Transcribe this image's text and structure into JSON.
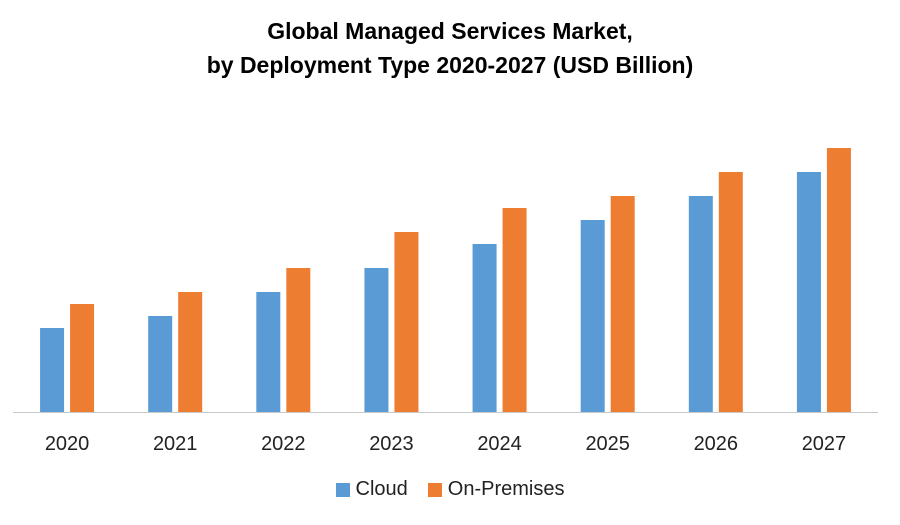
{
  "chart_data": {
    "type": "bar",
    "title_lines": [
      "Global Managed Services Market,",
      "by Deployment Type 2020-2027 (USD Billion)"
    ],
    "xlabel": "",
    "ylabel": "",
    "categories": [
      "2020",
      "2021",
      "2022",
      "2023",
      "2024",
      "2025",
      "2026",
      "2027"
    ],
    "series": [
      {
        "name": "Cloud",
        "color": "#5B9BD5",
        "values": [
          7,
          8,
          10,
          12,
          14,
          16,
          18,
          20
        ]
      },
      {
        "name": "On-Premises",
        "color": "#ED7D31",
        "values": [
          9,
          10,
          12,
          15,
          17,
          18,
          20,
          22
        ]
      }
    ],
    "ylim": [
      0,
      24
    ],
    "grid": false,
    "y_axis_visible": false,
    "legend_position": "bottom"
  }
}
